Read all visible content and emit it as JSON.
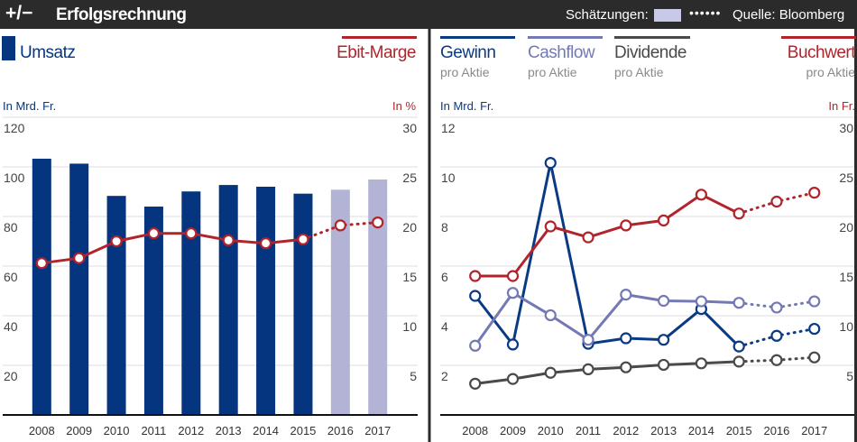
{
  "header": {
    "icon": "plus-minus-icon",
    "icon_text": "+/−",
    "title": "Erfolgsrechnung",
    "estimates_label": "Schätzungen:",
    "estimate_dots": "••••••",
    "source": "Quelle: Bloomberg"
  },
  "colors": {
    "umsatz": "#06357f",
    "umsatz_estimate": "#b3b3d6",
    "ebit": "#b1242c",
    "gewinn": "#0b3a85",
    "cashflow": "#7479b4",
    "dividende": "#4a4a4a",
    "buchwert": "#b1242c"
  },
  "chart_data": [
    {
      "type": "bar",
      "categories": [
        "2008",
        "2009",
        "2010",
        "2011",
        "2012",
        "2013",
        "2014",
        "2015",
        "2016",
        "2017"
      ],
      "estimates_from": "2016",
      "y_left": {
        "label": "In Mrd. Fr.",
        "range": [
          0,
          120
        ],
        "ticks": [
          "20",
          "40",
          "60",
          "80",
          "100",
          "120"
        ]
      },
      "y_right": {
        "label": "In %",
        "range": [
          0,
          30
        ],
        "ticks": [
          "5",
          "10",
          "15",
          "20",
          "25",
          "30"
        ]
      },
      "series": [
        {
          "name": "Umsatz",
          "type": "bar",
          "axis": "left",
          "values": [
            103.3,
            101.3,
            88.3,
            84,
            90.1,
            92.7,
            92,
            89.2,
            90.8,
            94.9
          ]
        },
        {
          "name": "Ebit-Marge",
          "type": "line",
          "axis": "right",
          "values": [
            15.3,
            15.8,
            17.5,
            18.3,
            18.3,
            17.6,
            17.3,
            17.7,
            19.1,
            19.4
          ]
        }
      ],
      "grid": true
    },
    {
      "type": "line",
      "categories": [
        "2008",
        "2009",
        "2010",
        "2011",
        "2012",
        "2013",
        "2014",
        "2015",
        "2016",
        "2017"
      ],
      "estimates_from": "2016",
      "y_left": {
        "label": "In Mrd. Fr.",
        "range": [
          0,
          12
        ],
        "ticks": [
          "2",
          "4",
          "6",
          "8",
          "10",
          "12"
        ]
      },
      "y_right": {
        "label": "In Fr.",
        "range": [
          0,
          30
        ],
        "ticks": [
          "5",
          "10",
          "15",
          "20",
          "25",
          "30"
        ]
      },
      "series": [
        {
          "name": "Gewinn",
          "subtitle": "pro Aktie",
          "axis": "left",
          "values": [
            4.8,
            2.84,
            10.16,
            2.87,
            3.09,
            3.03,
            4.27,
            2.76,
            3.19,
            3.47
          ]
        },
        {
          "name": "Cashflow",
          "subtitle": "pro Aktie",
          "axis": "left",
          "values": [
            2.79,
            4.92,
            4.02,
            3.03,
            4.85,
            4.6,
            4.58,
            4.52,
            4.33,
            4.58
          ]
        },
        {
          "name": "Dividende",
          "subtitle": "pro Aktie",
          "axis": "left",
          "values": [
            1.26,
            1.45,
            1.7,
            1.84,
            1.92,
            2.02,
            2.08,
            2.15,
            2.21,
            2.32
          ]
        },
        {
          "name": "Buchwert",
          "subtitle": "pro Aktie",
          "axis": "right",
          "values": [
            14.0,
            14.0,
            19.0,
            17.9,
            19.1,
            19.6,
            22.2,
            20.3,
            21.5,
            22.4
          ]
        }
      ],
      "grid": true
    }
  ]
}
